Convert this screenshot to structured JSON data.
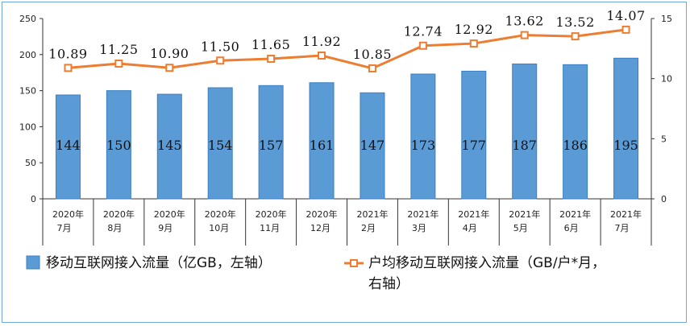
{
  "chart_data": {
    "type": "bar",
    "categories": [
      [
        "2020年",
        "7月"
      ],
      [
        "2020年",
        "8月"
      ],
      [
        "2020年",
        "9月"
      ],
      [
        "2020年",
        "10月"
      ],
      [
        "2020年",
        "11月"
      ],
      [
        "2020年",
        "12月"
      ],
      [
        "2021年",
        "2月"
      ],
      [
        "2021年",
        "3月"
      ],
      [
        "2021年",
        "4月"
      ],
      [
        "2021年",
        "5月"
      ],
      [
        "2021年",
        "6月"
      ],
      [
        "2021年",
        "7月"
      ]
    ],
    "series": [
      {
        "name": "移动互联网接入流量（亿GB，左轴）",
        "type": "bar",
        "axis": "left",
        "color": "#5b9bd5",
        "values": [
          144,
          150,
          145,
          154,
          157,
          161,
          147,
          173,
          177,
          187,
          186,
          195
        ],
        "labels": [
          "144",
          "150",
          "145",
          "154",
          "157",
          "161",
          "147",
          "173",
          "177",
          "187",
          "186",
          "195"
        ]
      },
      {
        "name_lines": [
          "户均移动互联网接入流量（GB/户*月，",
          "右轴）"
        ],
        "type": "line",
        "axis": "right",
        "color": "#ed7d31",
        "values": [
          10.89,
          11.25,
          10.9,
          11.5,
          11.65,
          11.92,
          10.85,
          12.74,
          12.92,
          13.62,
          13.52,
          14.07
        ],
        "labels": [
          "10.89",
          "11.25",
          "10.90",
          "11.50",
          "11.65",
          "11.92",
          "10.85",
          "12.74",
          "12.92",
          "13.62",
          "13.52",
          "14.07"
        ]
      }
    ],
    "left_axis": {
      "ylim": [
        0,
        250
      ],
      "ticks": [
        "0",
        "50",
        "100",
        "150",
        "200",
        "250"
      ]
    },
    "right_axis": {
      "ylim": [
        0,
        15
      ],
      "ticks": [
        "0",
        "5",
        "10",
        "15"
      ]
    },
    "grid": false,
    "legend_position": "bottom"
  }
}
